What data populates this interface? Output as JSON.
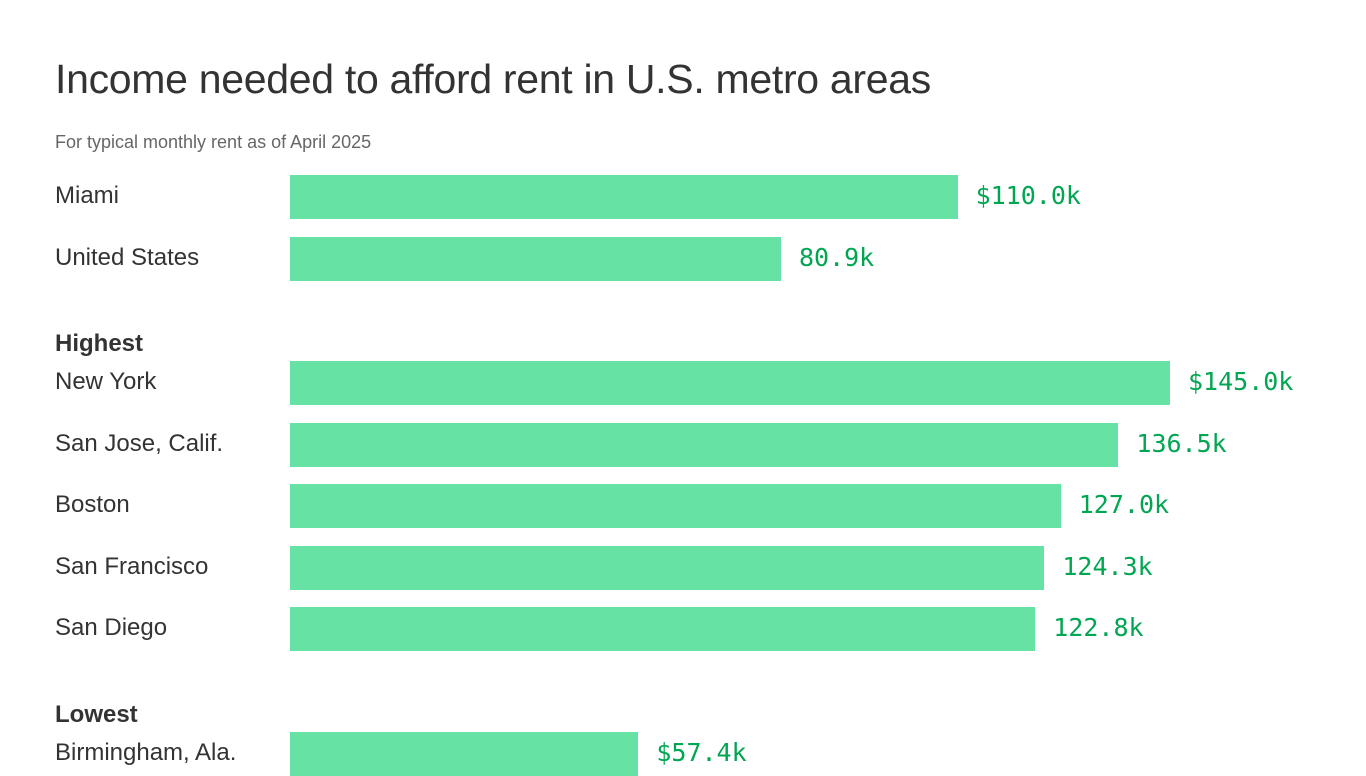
{
  "chart_data": {
    "type": "bar",
    "orientation": "horizontal",
    "title": "Income needed to afford rent in U.S. metro areas",
    "subtitle": "For typical monthly rent as of April 2025",
    "bar_color": "#66e2a4",
    "value_label_color": "#00a651",
    "xlim": [
      0,
      145
    ],
    "groups": [
      {
        "name": "",
        "items": [
          {
            "label": "Miami",
            "value": 110.0,
            "value_label": "$110.0k"
          },
          {
            "label": "United States",
            "value": 80.9,
            "value_label": "80.9k"
          }
        ]
      },
      {
        "name": "Highest",
        "items": [
          {
            "label": "New York",
            "value": 145.0,
            "value_label": "$145.0k"
          },
          {
            "label": "San Jose, Calif.",
            "value": 136.5,
            "value_label": "136.5k"
          },
          {
            "label": "Boston",
            "value": 127.0,
            "value_label": "127.0k"
          },
          {
            "label": "San Francisco",
            "value": 124.3,
            "value_label": "124.3k"
          },
          {
            "label": "San Diego",
            "value": 122.8,
            "value_label": "122.8k"
          }
        ]
      },
      {
        "name": "Lowest",
        "items": [
          {
            "label": "Birmingham, Ala.",
            "value": 57.4,
            "value_label": "$57.4k"
          }
        ]
      }
    ]
  }
}
